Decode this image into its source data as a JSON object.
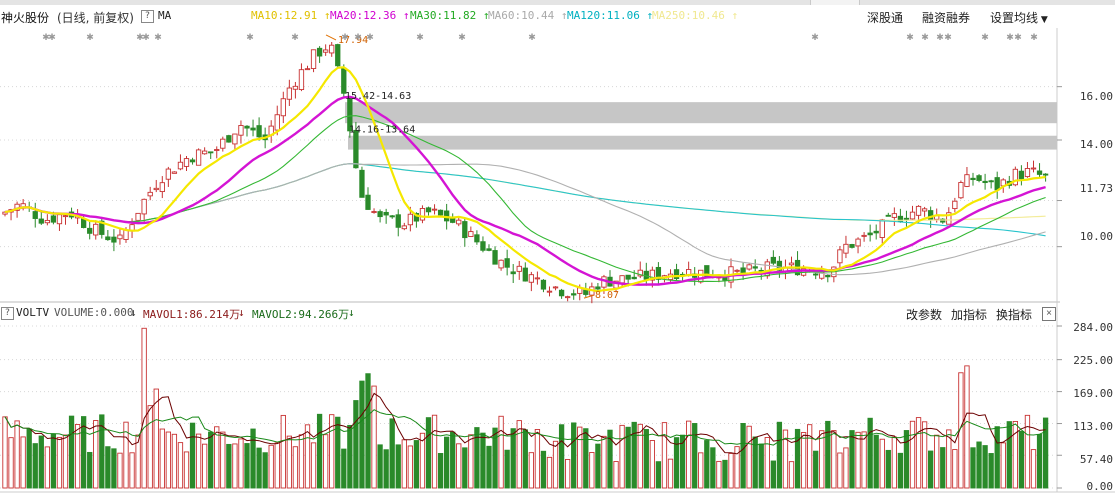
{
  "header": {
    "stock_name": "神火股份",
    "period": "(日线, 前复权)",
    "help": "?",
    "indicator": "MA",
    "ma_items": [
      {
        "text": "MA10:12.91",
        "arrow": "↑",
        "color": "#e0c000"
      },
      {
        "text": "MA20:12.36",
        "arrow": "↑",
        "color": "#d000d0"
      },
      {
        "text": "MA30:11.82",
        "arrow": "↑",
        "color": "#22aa22"
      },
      {
        "text": "MA60:10.44",
        "arrow": "↑",
        "color": "#aaaaaa"
      },
      {
        "text": "MA120:11.06",
        "arrow": "↑",
        "color": "#00b0c0"
      },
      {
        "text": "MA250:10.46",
        "arrow": "↑",
        "color": "#f0e890"
      }
    ],
    "links": {
      "shen_gu_tong": "深股通",
      "rong_zi": "融资融券",
      "settings": "设置均线"
    }
  },
  "price_chart": {
    "y_labels": [
      "16.00",
      "14.00",
      "11.73",
      "10.00"
    ],
    "annotations": {
      "high": "17.94",
      "gap_upper": "15.42-14.63",
      "gap_lower": "14.16-13.64",
      "low": "8.07"
    }
  },
  "volume": {
    "help": "?",
    "indicator": "VOLTV",
    "volume_text": "VOLUME:0.000",
    "mavol1": "MAVOL1:86.214万",
    "mavol2": "MAVOL2:94.266万",
    "arrow_down": "↓",
    "tools": {
      "params": "改参数",
      "add": "加指标",
      "switch": "换指标",
      "close": "×"
    },
    "y_labels": [
      "284.00",
      "225.00",
      "169.00",
      "113.00",
      "57.40",
      "0.00"
    ]
  },
  "chart_data": {
    "type": "candlestick",
    "price_axis": {
      "ylim": [
        8.0,
        18.2
      ],
      "ticks": [
        10.0,
        11.73,
        14.0,
        16.0
      ]
    },
    "volume_axis": {
      "ylim": [
        0,
        284
      ],
      "ticks": [
        0,
        57.4,
        113,
        169,
        225,
        284
      ],
      "unit": "万"
    },
    "series": [
      {
        "name": "MA10",
        "color": "#f0e000"
      },
      {
        "name": "MA20",
        "color": "#d000d0"
      },
      {
        "name": "MA30",
        "color": "#22bb22"
      },
      {
        "name": "MA60",
        "color": "#aaaaaa"
      },
      {
        "name": "MA120",
        "color": "#00c0c8"
      },
      {
        "name": "MA250",
        "color": "#f0e890"
      }
    ],
    "gaps": [
      [
        14.63,
        15.42
      ],
      [
        13.64,
        14.16
      ]
    ],
    "high_point": 17.94,
    "low_point": 8.07,
    "colors": {
      "up": "#c83232",
      "down": "#2a8a2a"
    }
  }
}
